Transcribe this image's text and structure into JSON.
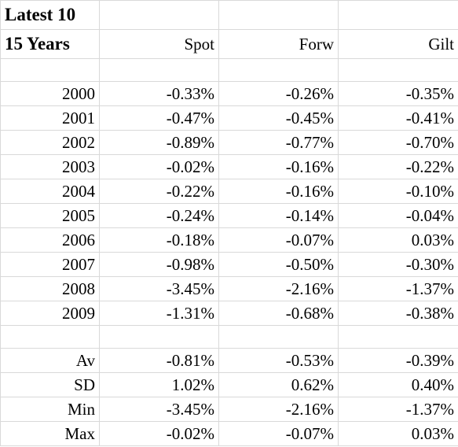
{
  "title_line1": "Latest 10",
  "title_line2": "15 Years",
  "headers": [
    "Spot",
    "Forw",
    "Gilt"
  ],
  "years": [
    {
      "label": "2000",
      "values": [
        "-0.33%",
        "-0.26%",
        "-0.35%"
      ]
    },
    {
      "label": "2001",
      "values": [
        "-0.47%",
        "-0.45%",
        "-0.41%"
      ]
    },
    {
      "label": "2002",
      "values": [
        "-0.89%",
        "-0.77%",
        "-0.70%"
      ]
    },
    {
      "label": "2003",
      "values": [
        "-0.02%",
        "-0.16%",
        "-0.22%"
      ]
    },
    {
      "label": "2004",
      "values": [
        "-0.22%",
        "-0.16%",
        "-0.10%"
      ]
    },
    {
      "label": "2005",
      "values": [
        "-0.24%",
        "-0.14%",
        "-0.04%"
      ]
    },
    {
      "label": "2006",
      "values": [
        "-0.18%",
        "-0.07%",
        "0.03%"
      ]
    },
    {
      "label": "2007",
      "values": [
        "-0.98%",
        "-0.50%",
        "-0.30%"
      ]
    },
    {
      "label": "2008",
      "values": [
        "-3.45%",
        "-2.16%",
        "-1.37%"
      ]
    },
    {
      "label": "2009",
      "values": [
        "-1.31%",
        "-0.68%",
        "-0.38%"
      ]
    }
  ],
  "stats": [
    {
      "label": "Av",
      "values": [
        "-0.81%",
        "-0.53%",
        "-0.39%"
      ]
    },
    {
      "label": "SD",
      "values": [
        "1.02%",
        "0.62%",
        "0.40%"
      ]
    },
    {
      "label": "Min",
      "values": [
        "-3.45%",
        "-2.16%",
        "-1.37%"
      ]
    },
    {
      "label": "Max",
      "values": [
        "-0.02%",
        "-0.07%",
        "0.03%"
      ]
    }
  ]
}
